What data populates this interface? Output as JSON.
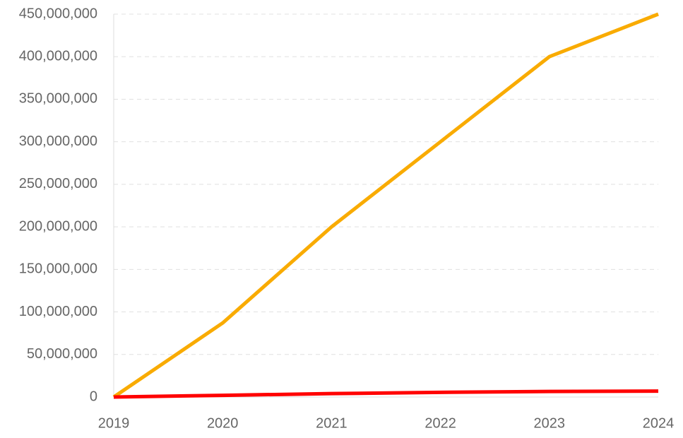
{
  "chart_data": {
    "type": "line",
    "categories": [
      "2019",
      "2020",
      "2021",
      "2022",
      "2023",
      "2024"
    ],
    "series": [
      {
        "color": "#f9ab00",
        "values": [
          0,
          87000000,
          200000000,
          300000000,
          400000000,
          450000000
        ]
      },
      {
        "color": "#ff0000",
        "values": [
          0,
          2000000,
          4000000,
          5500000,
          6500000,
          7000000
        ]
      }
    ],
    "ylim": [
      0,
      450000000
    ],
    "yticks": [
      0,
      {
        "value": 50000000,
        "label": "50,000,000"
      },
      {
        "value": 100000000,
        "label": "100,000,000"
      },
      {
        "value": 150000000,
        "label": "150,000,000"
      },
      {
        "value": 200000000,
        "label": "200,000,000"
      },
      {
        "value": 250000000,
        "label": "250,000,000"
      },
      {
        "value": 300000000,
        "label": "300,000,000"
      },
      {
        "value": 350000000,
        "label": "350,000,000"
      },
      {
        "value": 400000000,
        "label": "400,000,000"
      },
      {
        "value": 450000000,
        "label": "450,000,000"
      }
    ],
    "grid": true
  }
}
